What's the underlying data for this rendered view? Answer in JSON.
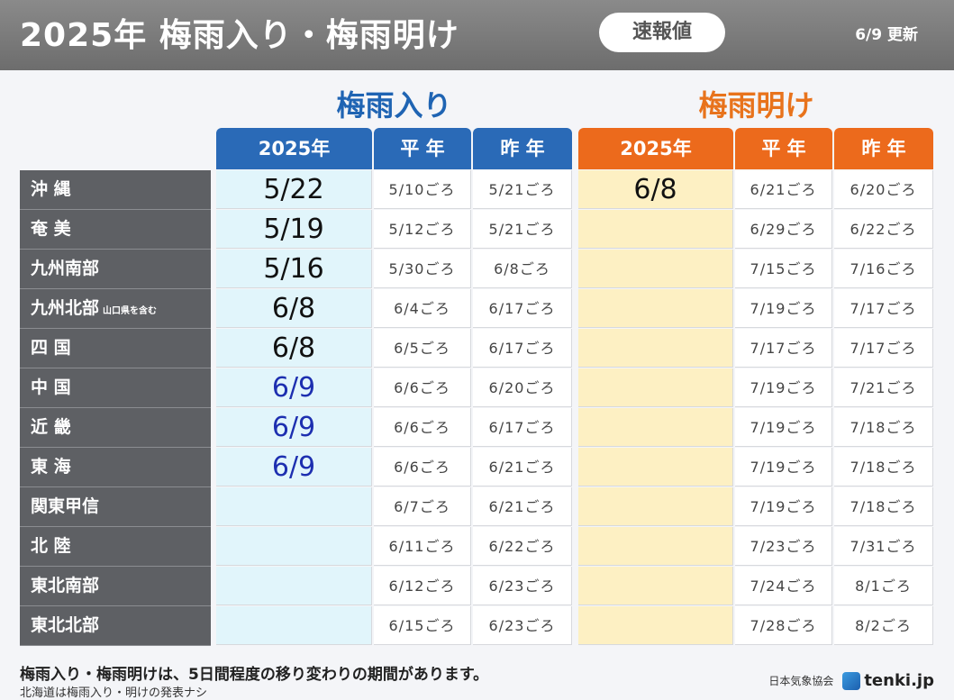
{
  "header": {
    "title": "2025年 梅雨入り・梅雨明け",
    "badge": "速報値",
    "update": "6/9 更新"
  },
  "sections": {
    "in_title": "梅雨入り",
    "out_title": "梅雨明け"
  },
  "columns": {
    "in_2025": "2025年",
    "in_normal": "平 年",
    "in_last": "昨 年",
    "out_2025": "2025年",
    "out_normal": "平 年",
    "out_last": "昨 年"
  },
  "rows": [
    {
      "region": "沖 縄",
      "note": "",
      "in_2025": "5/22",
      "in_normal": "5/10ごろ",
      "in_last": "5/21ごろ",
      "out_2025": "6/8",
      "out_normal": "6/21ごろ",
      "out_last": "6/20ごろ"
    },
    {
      "region": "奄 美",
      "note": "",
      "in_2025": "5/19",
      "in_normal": "5/12ごろ",
      "in_last": "5/21ごろ",
      "out_2025": "",
      "out_normal": "6/29ごろ",
      "out_last": "6/22ごろ"
    },
    {
      "region": "九州南部",
      "note": "",
      "in_2025": "5/16",
      "in_normal": "5/30ごろ",
      "in_last": "6/8ごろ",
      "out_2025": "",
      "out_normal": "7/15ごろ",
      "out_last": "7/16ごろ"
    },
    {
      "region": "九州北部",
      "note": "山口県を含む",
      "in_2025": "6/8",
      "in_normal": "6/4ごろ",
      "in_last": "6/17ごろ",
      "out_2025": "",
      "out_normal": "7/19ごろ",
      "out_last": "7/17ごろ"
    },
    {
      "region": "四 国",
      "note": "",
      "in_2025": "6/8",
      "in_normal": "6/5ごろ",
      "in_last": "6/17ごろ",
      "out_2025": "",
      "out_normal": "7/17ごろ",
      "out_last": "7/17ごろ"
    },
    {
      "region": "中 国",
      "note": "",
      "in_2025": "6/9",
      "in_normal": "6/6ごろ",
      "in_last": "6/20ごろ",
      "out_2025": "",
      "out_normal": "7/19ごろ",
      "out_last": "7/21ごろ"
    },
    {
      "region": "近 畿",
      "note": "",
      "in_2025": "6/9",
      "in_normal": "6/6ごろ",
      "in_last": "6/17ごろ",
      "out_2025": "",
      "out_normal": "7/19ごろ",
      "out_last": "7/18ごろ"
    },
    {
      "region": "東 海",
      "note": "",
      "in_2025": "6/9",
      "in_normal": "6/6ごろ",
      "in_last": "6/21ごろ",
      "out_2025": "",
      "out_normal": "7/19ごろ",
      "out_last": "7/18ごろ"
    },
    {
      "region": "関東甲信",
      "note": "",
      "in_2025": "",
      "in_normal": "6/7ごろ",
      "in_last": "6/21ごろ",
      "out_2025": "",
      "out_normal": "7/19ごろ",
      "out_last": "7/18ごろ"
    },
    {
      "region": "北 陸",
      "note": "",
      "in_2025": "",
      "in_normal": "6/11ごろ",
      "in_last": "6/22ごろ",
      "out_2025": "",
      "out_normal": "7/23ごろ",
      "out_last": "7/31ごろ"
    },
    {
      "region": "東北南部",
      "note": "",
      "in_2025": "",
      "in_normal": "6/12ごろ",
      "in_last": "6/23ごろ",
      "out_2025": "",
      "out_normal": "7/24ごろ",
      "out_last": "8/1ごろ"
    },
    {
      "region": "東北北部",
      "note": "",
      "in_2025": "",
      "in_normal": "6/15ごろ",
      "in_last": "6/23ごろ",
      "out_2025": "",
      "out_normal": "7/28ごろ",
      "out_last": "8/2ごろ"
    }
  ],
  "highlight": {
    "blue_regions_in_2025": [
      "中 国",
      "近 畿",
      "東 海"
    ],
    "blue_text_color": "#1d2fb0",
    "in_accent": "#2a6ab7",
    "out_accent": "#ec6a1c"
  },
  "footer": {
    "note1": "梅雨入り・梅雨明けは、5日間程度の移り変わりの期間があります。",
    "note2": "北海道は梅雨入り・明けの発表ナシ",
    "credit_org": "日本気象協会",
    "credit_site": "tenki.jp"
  }
}
